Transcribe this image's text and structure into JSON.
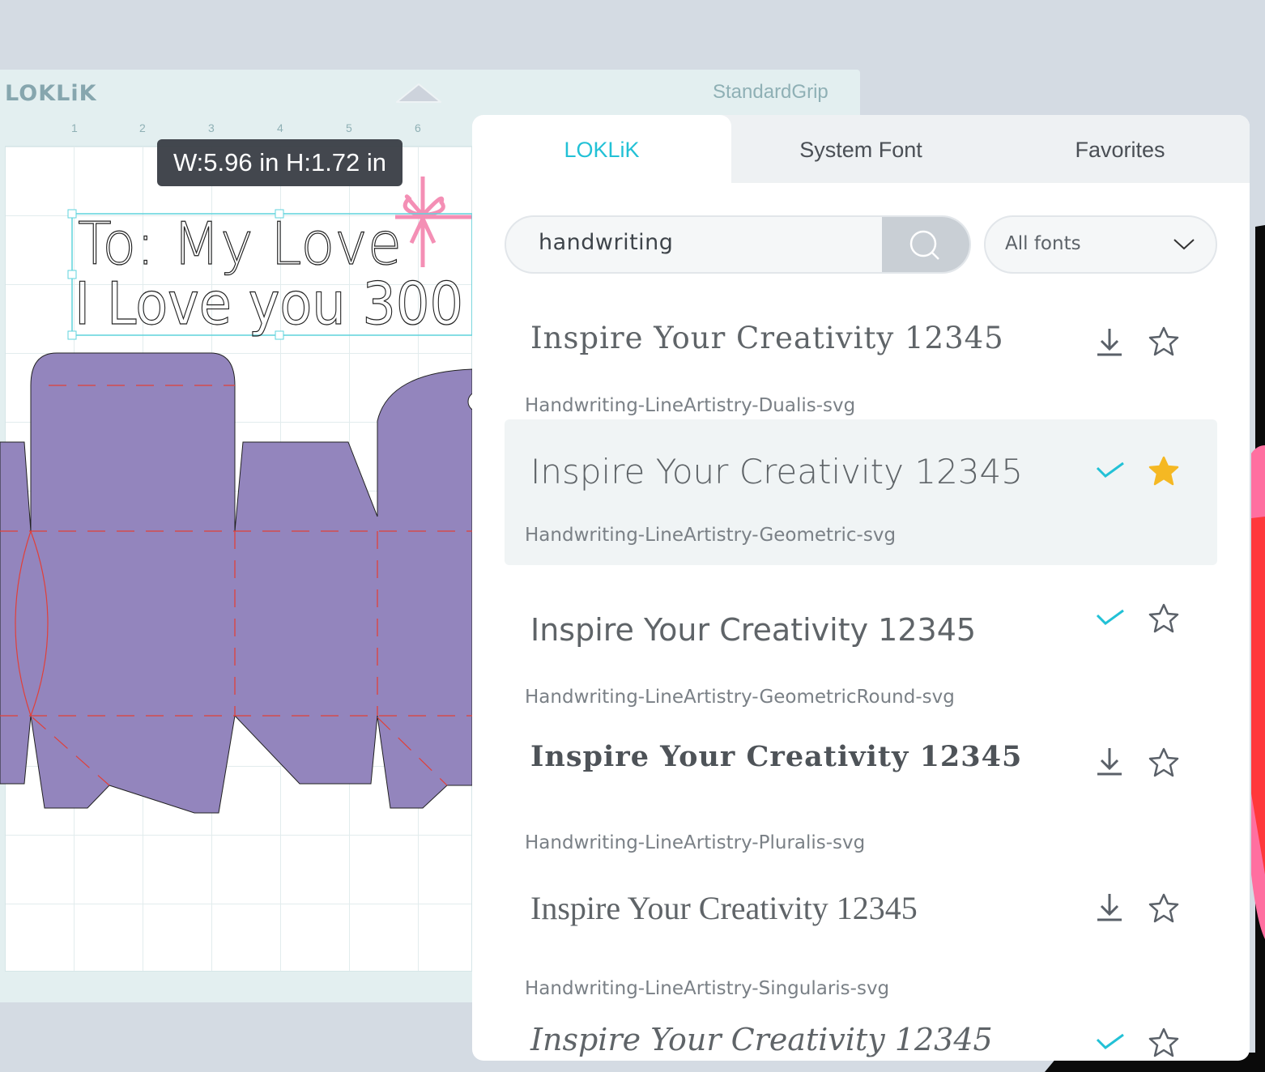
{
  "app": {
    "logo": "LOKLiK",
    "mat_name": "StandardGrip"
  },
  "ruler": [
    "1",
    "2",
    "3",
    "4",
    "5",
    "6"
  ],
  "canvas": {
    "size_tooltip": "W:5.96 in  H:1.72 in",
    "text_line1": "To: My Love",
    "text_line2": "I Love you 300",
    "shape_color": "#9385bd",
    "ribbon_color": "#f48fb5"
  },
  "font_panel": {
    "tabs": [
      {
        "label": "LOKLiK",
        "active": true
      },
      {
        "label": "System Font",
        "active": false
      },
      {
        "label": "Favorites",
        "active": false
      }
    ],
    "search": {
      "value": "handwriting",
      "icon": "search-icon"
    },
    "filter": {
      "selected": "All fonts"
    },
    "accent": "#22c1d6",
    "fonts": [
      {
        "preview": "Inspire Your Creativity 12345",
        "name": "Handwriting-LineArtistry-Dualis-svg",
        "status": "download",
        "favorite": false
      },
      {
        "preview": "Inspire Your Creativity 12345",
        "name": "Handwriting-LineArtistry-Geometric-svg",
        "status": "installed",
        "favorite": true,
        "selected": true
      },
      {
        "preview": "Inspire Your Creativity 12345",
        "name": "Handwriting-LineArtistry-GeometricRound-svg",
        "status": "installed",
        "favorite": false
      },
      {
        "preview": "Inspire Your Creativity 12345",
        "name": "Handwriting-LineArtistry-Pluralis-svg",
        "status": "download",
        "favorite": false
      },
      {
        "preview": "Inspire Your Creativity 12345",
        "name": "Handwriting-LineArtistry-Singularis-svg",
        "status": "download",
        "favorite": false
      },
      {
        "preview": "Inspire Your Creativity 12345",
        "name": "",
        "status": "installed",
        "favorite": false
      }
    ]
  }
}
